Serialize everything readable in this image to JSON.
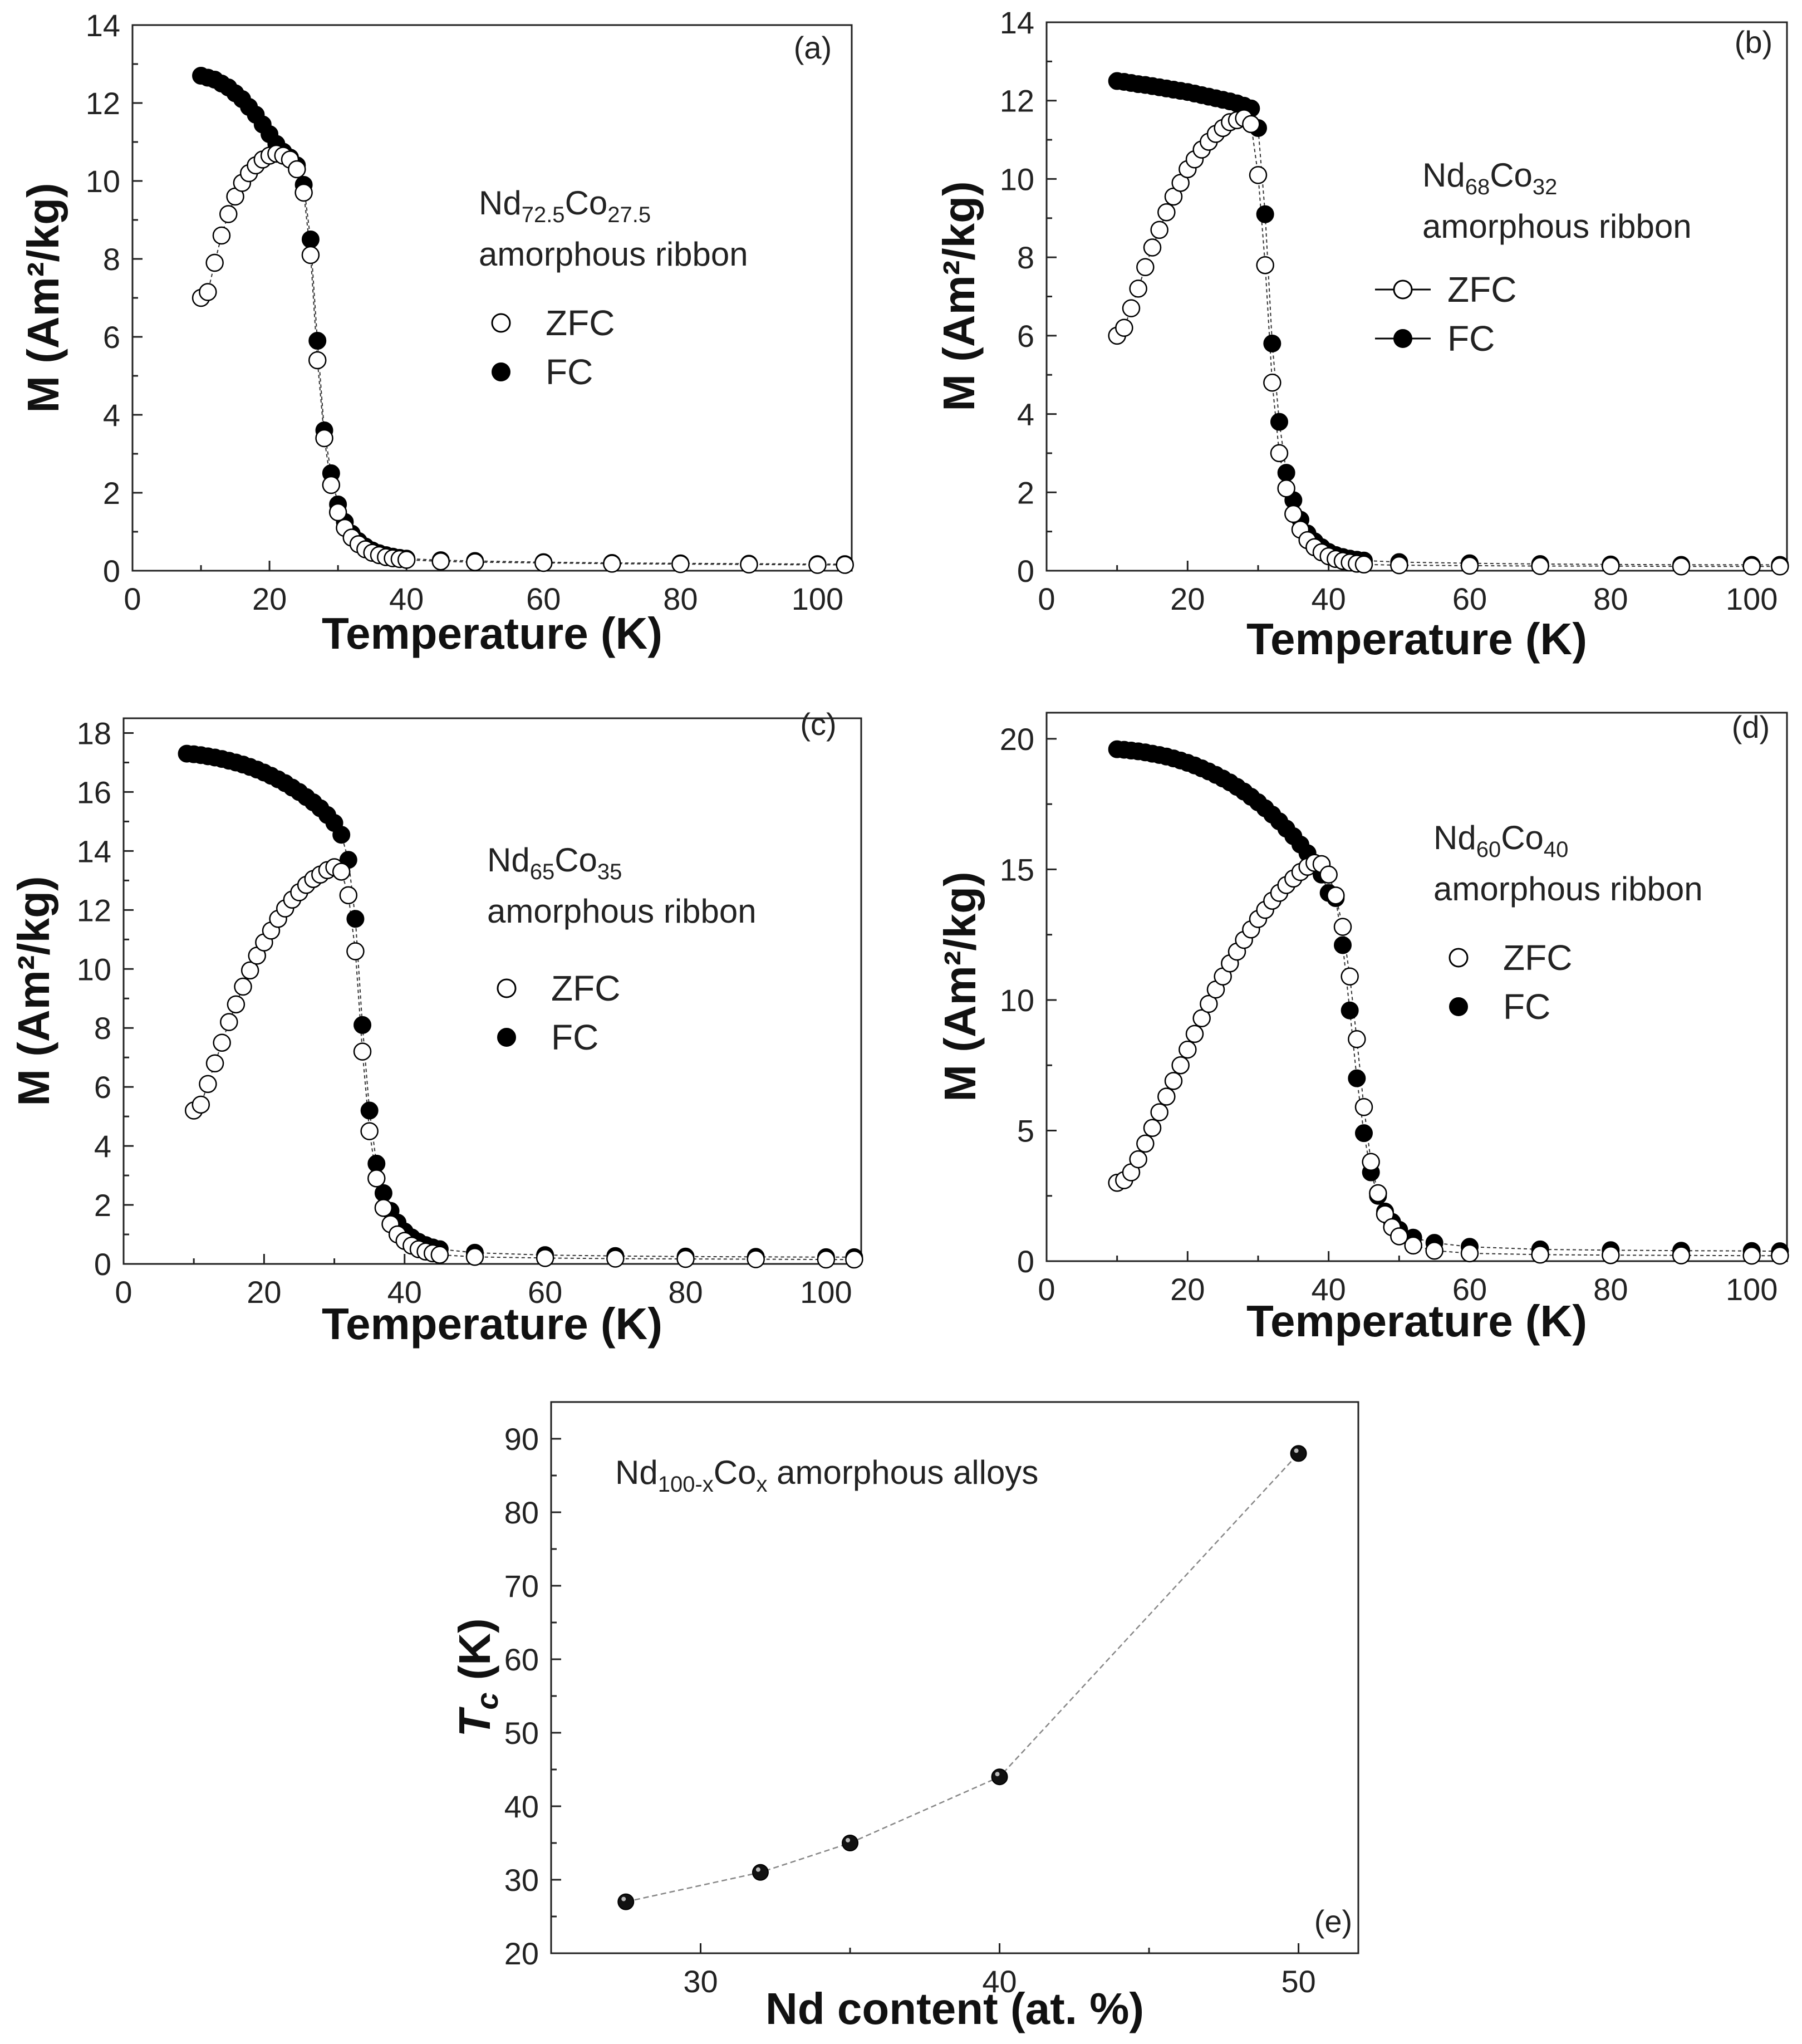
{
  "chart_data": [
    {
      "type": "scatter",
      "panel": "(a)",
      "title": "",
      "xlabel": "Temperature (K)",
      "ylabel": "M (Am²/kg)",
      "xlim": [
        0,
        105
      ],
      "ylim": [
        0,
        14
      ],
      "xticks": [
        0,
        20,
        40,
        60,
        80,
        100
      ],
      "yticks": [
        0,
        2,
        4,
        6,
        8,
        10,
        12,
        14
      ],
      "tc": 27,
      "annotation": {
        "base": "Nd",
        "sub1": "72.5",
        "mid": "Co",
        "sub2": "27.5",
        "line2": "amorphous ribbon"
      },
      "legend": {
        "zfc": "ZFC",
        "fc": "FC",
        "lines": false
      },
      "series": [
        {
          "name": "ZFC",
          "x": [
            10,
            11,
            12,
            13,
            14,
            15,
            16,
            17,
            18,
            19,
            20,
            21,
            22,
            23,
            24,
            25,
            26,
            27,
            28,
            29,
            30,
            31,
            32,
            33,
            34,
            35,
            36,
            37,
            38,
            39,
            40,
            45,
            50,
            60,
            70,
            80,
            90,
            100,
            104
          ],
          "y": [
            7.0,
            7.15,
            7.9,
            8.6,
            9.15,
            9.6,
            9.95,
            10.2,
            10.4,
            10.55,
            10.65,
            10.7,
            10.65,
            10.55,
            10.3,
            9.7,
            8.1,
            5.4,
            3.4,
            2.2,
            1.5,
            1.1,
            0.85,
            0.68,
            0.55,
            0.46,
            0.4,
            0.35,
            0.32,
            0.3,
            0.28,
            0.24,
            0.22,
            0.2,
            0.18,
            0.17,
            0.16,
            0.15,
            0.15
          ]
        },
        {
          "name": "FC",
          "x": [
            10,
            11,
            12,
            13,
            14,
            15,
            16,
            17,
            18,
            19,
            20,
            21,
            22,
            23,
            24,
            25,
            26,
            27,
            28,
            29,
            30,
            31,
            32,
            33,
            34,
            35,
            36,
            37,
            38,
            39,
            40,
            45,
            50,
            60,
            70,
            80,
            90,
            100,
            104
          ],
          "y": [
            12.7,
            12.65,
            12.6,
            12.5,
            12.4,
            12.25,
            12.1,
            11.9,
            11.7,
            11.45,
            11.2,
            10.95,
            10.75,
            10.6,
            10.4,
            9.9,
            8.5,
            5.9,
            3.6,
            2.5,
            1.7,
            1.25,
            0.95,
            0.76,
            0.62,
            0.52,
            0.45,
            0.4,
            0.36,
            0.33,
            0.31,
            0.27,
            0.25,
            0.22,
            0.2,
            0.19,
            0.18,
            0.17,
            0.17
          ]
        }
      ]
    },
    {
      "type": "scatter",
      "panel": "(b)",
      "title": "",
      "xlabel": "Temperature (K)",
      "ylabel": "M (Am²/kg)",
      "xlim": [
        0,
        105
      ],
      "ylim": [
        0,
        14
      ],
      "xticks": [
        0,
        20,
        40,
        60,
        80,
        100
      ],
      "yticks": [
        0,
        2,
        4,
        6,
        8,
        10,
        12,
        14
      ],
      "tc": 31,
      "annotation": {
        "base": "Nd",
        "sub1": "68",
        "mid": "Co",
        "sub2": "32",
        "line2": "amorphous ribbon"
      },
      "legend": {
        "zfc": "ZFC",
        "fc": "FC",
        "lines": true
      },
      "series": [
        {
          "name": "ZFC",
          "x": [
            10,
            11,
            12,
            13,
            14,
            15,
            16,
            17,
            18,
            19,
            20,
            21,
            22,
            23,
            24,
            25,
            26,
            27,
            28,
            29,
            30,
            31,
            32,
            33,
            34,
            35,
            36,
            37,
            38,
            39,
            40,
            41,
            42,
            43,
            44,
            45,
            50,
            60,
            70,
            80,
            90,
            100,
            104
          ],
          "y": [
            6.0,
            6.2,
            6.7,
            7.2,
            7.75,
            8.25,
            8.7,
            9.15,
            9.55,
            9.9,
            10.25,
            10.5,
            10.75,
            10.95,
            11.15,
            11.3,
            11.45,
            11.5,
            11.55,
            11.4,
            10.1,
            7.8,
            4.8,
            3.0,
            2.1,
            1.45,
            1.05,
            0.78,
            0.6,
            0.47,
            0.37,
            0.3,
            0.25,
            0.21,
            0.18,
            0.16,
            0.14,
            0.13,
            0.12,
            0.12,
            0.11,
            0.11,
            0.11
          ]
        },
        {
          "name": "FC",
          "x": [
            10,
            11,
            12,
            13,
            14,
            15,
            16,
            17,
            18,
            19,
            20,
            21,
            22,
            23,
            24,
            25,
            26,
            27,
            28,
            29,
            30,
            31,
            32,
            33,
            34,
            35,
            36,
            37,
            38,
            39,
            40,
            41,
            42,
            43,
            44,
            45,
            50,
            60,
            70,
            80,
            90,
            100,
            104
          ],
          "y": [
            12.5,
            12.48,
            12.45,
            12.42,
            12.4,
            12.37,
            12.34,
            12.31,
            12.28,
            12.25,
            12.22,
            12.18,
            12.14,
            12.1,
            12.06,
            12.02,
            11.98,
            11.93,
            11.87,
            11.8,
            11.3,
            9.1,
            5.8,
            3.8,
            2.5,
            1.8,
            1.3,
            0.95,
            0.75,
            0.6,
            0.48,
            0.4,
            0.35,
            0.31,
            0.28,
            0.26,
            0.22,
            0.19,
            0.17,
            0.16,
            0.15,
            0.15,
            0.15
          ]
        }
      ]
    },
    {
      "type": "scatter",
      "panel": "(c)",
      "title": "",
      "xlabel": "Temperature (K)",
      "ylabel": "M (Am²/kg)",
      "xlim": [
        0,
        105
      ],
      "ylim": [
        0,
        18.5
      ],
      "xticks": [
        0,
        20,
        40,
        60,
        80,
        100
      ],
      "yticks": [
        0,
        2,
        4,
        6,
        8,
        10,
        12,
        14,
        16,
        18
      ],
      "tc": 35,
      "annotation": {
        "base": "Nd",
        "sub1": "65",
        "mid": "Co",
        "sub2": "35",
        "line2": "amorphous ribbon"
      },
      "legend": {
        "zfc": "ZFC",
        "fc": "FC",
        "lines": false
      },
      "series": [
        {
          "name": "ZFC",
          "x": [
            10,
            11,
            12,
            13,
            14,
            15,
            16,
            17,
            18,
            19,
            20,
            21,
            22,
            23,
            24,
            25,
            26,
            27,
            28,
            29,
            30,
            31,
            32,
            33,
            34,
            35,
            36,
            37,
            38,
            39,
            40,
            41,
            42,
            43,
            44,
            45,
            50,
            60,
            70,
            80,
            90,
            100,
            104
          ],
          "y": [
            5.2,
            5.4,
            6.1,
            6.8,
            7.5,
            8.2,
            8.8,
            9.4,
            9.95,
            10.45,
            10.9,
            11.3,
            11.7,
            12.05,
            12.35,
            12.6,
            12.85,
            13.05,
            13.2,
            13.35,
            13.45,
            13.3,
            12.5,
            10.6,
            7.2,
            4.5,
            2.9,
            1.9,
            1.35,
            1.0,
            0.78,
            0.62,
            0.5,
            0.42,
            0.36,
            0.31,
            0.24,
            0.2,
            0.18,
            0.17,
            0.16,
            0.15,
            0.15
          ]
        },
        {
          "name": "FC",
          "x": [
            9,
            10,
            11,
            12,
            13,
            14,
            15,
            16,
            17,
            18,
            19,
            20,
            21,
            22,
            23,
            24,
            25,
            26,
            27,
            28,
            29,
            30,
            31,
            32,
            33,
            34,
            35,
            36,
            37,
            38,
            39,
            40,
            41,
            42,
            43,
            44,
            45,
            50,
            60,
            70,
            80,
            90,
            100,
            104
          ],
          "y": [
            17.3,
            17.28,
            17.25,
            17.21,
            17.17,
            17.12,
            17.06,
            17.0,
            16.93,
            16.85,
            16.76,
            16.66,
            16.55,
            16.43,
            16.3,
            16.15,
            16.0,
            15.83,
            15.65,
            15.45,
            15.22,
            14.95,
            14.55,
            13.7,
            11.7,
            8.1,
            5.2,
            3.4,
            2.4,
            1.8,
            1.4,
            1.1,
            0.9,
            0.75,
            0.64,
            0.56,
            0.5,
            0.38,
            0.3,
            0.27,
            0.25,
            0.24,
            0.23,
            0.23
          ]
        }
      ]
    },
    {
      "type": "scatter",
      "panel": "(d)",
      "title": "",
      "xlabel": "Temperature (K)",
      "ylabel": "M (Am²/kg)",
      "xlim": [
        0,
        105
      ],
      "ylim": [
        0,
        21
      ],
      "xticks": [
        0,
        20,
        40,
        60,
        80,
        100
      ],
      "yticks": [
        0,
        5,
        10,
        15,
        20
      ],
      "tc": 44,
      "annotation": {
        "base": "Nd",
        "sub1": "60",
        "mid": "Co",
        "sub2": "40",
        "line2": "amorphous ribbon"
      },
      "legend": {
        "zfc": "ZFC",
        "fc": "FC",
        "lines": false
      },
      "series": [
        {
          "name": "ZFC",
          "x": [
            10,
            11,
            12,
            13,
            14,
            15,
            16,
            17,
            18,
            19,
            20,
            21,
            22,
            23,
            24,
            25,
            26,
            27,
            28,
            29,
            30,
            31,
            32,
            33,
            34,
            35,
            36,
            37,
            38,
            39,
            40,
            41,
            42,
            43,
            44,
            45,
            46,
            47,
            48,
            49,
            50,
            52,
            55,
            60,
            70,
            80,
            90,
            100,
            104
          ],
          "y": [
            3.0,
            3.1,
            3.4,
            3.9,
            4.5,
            5.1,
            5.7,
            6.3,
            6.9,
            7.5,
            8.1,
            8.7,
            9.3,
            9.85,
            10.4,
            10.9,
            11.4,
            11.85,
            12.3,
            12.7,
            13.1,
            13.45,
            13.8,
            14.1,
            14.4,
            14.65,
            14.9,
            15.1,
            15.25,
            15.2,
            14.8,
            14.0,
            12.8,
            10.9,
            8.5,
            5.9,
            3.8,
            2.6,
            1.8,
            1.3,
            0.95,
            0.6,
            0.4,
            0.3,
            0.25,
            0.23,
            0.22,
            0.21,
            0.21
          ]
        },
        {
          "name": "FC",
          "x": [
            10,
            11,
            12,
            13,
            14,
            15,
            16,
            17,
            18,
            19,
            20,
            21,
            22,
            23,
            24,
            25,
            26,
            27,
            28,
            29,
            30,
            31,
            32,
            33,
            34,
            35,
            36,
            37,
            38,
            39,
            40,
            41,
            42,
            43,
            44,
            45,
            46,
            47,
            48,
            49,
            50,
            52,
            55,
            60,
            70,
            80,
            90,
            100,
            104
          ],
          "y": [
            19.6,
            19.58,
            19.55,
            19.52,
            19.48,
            19.43,
            19.38,
            19.32,
            19.25,
            19.17,
            19.08,
            18.98,
            18.87,
            18.75,
            18.62,
            18.48,
            18.33,
            18.16,
            17.98,
            17.78,
            17.57,
            17.34,
            17.1,
            16.84,
            16.56,
            16.27,
            15.95,
            15.62,
            15.25,
            14.8,
            14.1,
            13.9,
            12.1,
            9.6,
            7.0,
            4.9,
            3.4,
            2.5,
            1.9,
            1.5,
            1.2,
            0.9,
            0.7,
            0.55,
            0.45,
            0.42,
            0.4,
            0.39,
            0.38
          ]
        }
      ]
    },
    {
      "type": "line",
      "panel": "(e)",
      "title": "",
      "xlabel": "Nd content (at. %)",
      "ylabel": "T",
      "ylabel_sub": "c",
      "ylabel_unit": " (K)",
      "xlim": [
        25,
        52
      ],
      "ylim": [
        20,
        95
      ],
      "xticks": [
        30,
        40,
        50
      ],
      "yticks": [
        20,
        30,
        40,
        50,
        60,
        70,
        80,
        90
      ],
      "annotation": {
        "base": "Nd",
        "sub1": "100-x",
        "mid": "Co",
        "sub2": "x",
        "line2": "amorphous alloys"
      },
      "series": [
        {
          "name": "Tc",
          "x": [
            27.5,
            32,
            35,
            40,
            50
          ],
          "y": [
            27,
            31,
            35,
            44,
            88
          ]
        }
      ]
    }
  ]
}
